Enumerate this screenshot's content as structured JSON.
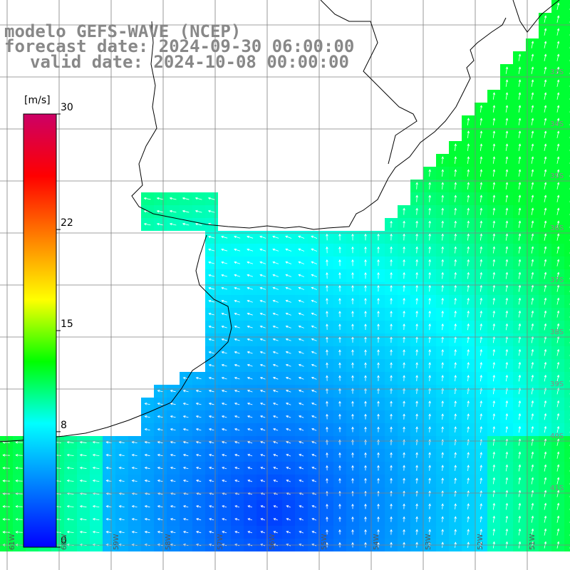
{
  "title": {
    "line1": "modelo GEFS-WAVE (NCEP)",
    "line2": "forecast date: 2024-09-30 06:00:00",
    "line3": "valid date: 2024-10-08 00:00:00"
  },
  "colorbar": {
    "unit": "[m/s]",
    "ticks": [
      "30",
      "22",
      "15",
      "8",
      "0"
    ],
    "tick_values": [
      30,
      22,
      15,
      8,
      0
    ],
    "min": 0,
    "max": 30,
    "colors": [
      "#0000ff",
      "#0080ff",
      "#00ffff",
      "#00ff00",
      "#ffff00",
      "#ff8000",
      "#ff0000",
      "#cc0066"
    ]
  },
  "axes": {
    "lon_labels": [
      "61W",
      "60W",
      "59W",
      "58W",
      "57W",
      "56W",
      "55W",
      "54W",
      "53W",
      "52W",
      "51W"
    ],
    "lat_labels": [
      "33S",
      "34S",
      "35S",
      "36S",
      "37S",
      "38S",
      "39S",
      "40S",
      "41S"
    ]
  },
  "colors": {
    "land": "#ffffff",
    "coast": "#000000",
    "grid": "#808080",
    "title": "#888888",
    "arrow": "#ffffff"
  }
}
